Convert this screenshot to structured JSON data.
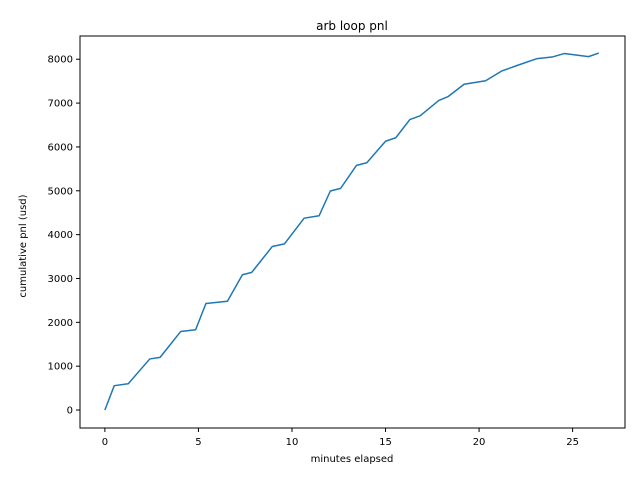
{
  "chart_data": {
    "type": "line",
    "title": "arb loop pnl",
    "xlabel": "minutes elapsed",
    "ylabel": "cumulative pnl (usd)",
    "xlim": [
      -1.33,
      27.8
    ],
    "ylim": [
      -410,
      8530
    ],
    "xticks": [
      0,
      5,
      10,
      15,
      20,
      25
    ],
    "yticks": [
      0,
      1000,
      2000,
      3000,
      4000,
      5000,
      6000,
      7000,
      8000
    ],
    "grid": false,
    "legend": "none",
    "series": [
      {
        "color": "#1f77b4",
        "x": [
          0,
          0.5,
          1.25,
          2.4,
          2.95,
          4.05,
          4.85,
          5.4,
          6.55,
          7.35,
          7.85,
          8.95,
          9.6,
          10.65,
          11.45,
          12.05,
          12.6,
          13.45,
          14.0,
          15.0,
          15.55,
          16.3,
          16.85,
          17.85,
          18.35,
          19.2,
          20.35,
          21.2,
          22.05,
          23.1,
          23.9,
          24.55,
          25.85,
          26.4
        ],
        "y": [
          0,
          555,
          600,
          1165,
          1200,
          1790,
          1830,
          2430,
          2480,
          3085,
          3140,
          3730,
          3790,
          4375,
          4430,
          4995,
          5055,
          5580,
          5640,
          6130,
          6210,
          6625,
          6710,
          7060,
          7150,
          7430,
          7510,
          7730,
          7860,
          8015,
          8050,
          8130,
          8060,
          8140
        ]
      }
    ]
  }
}
